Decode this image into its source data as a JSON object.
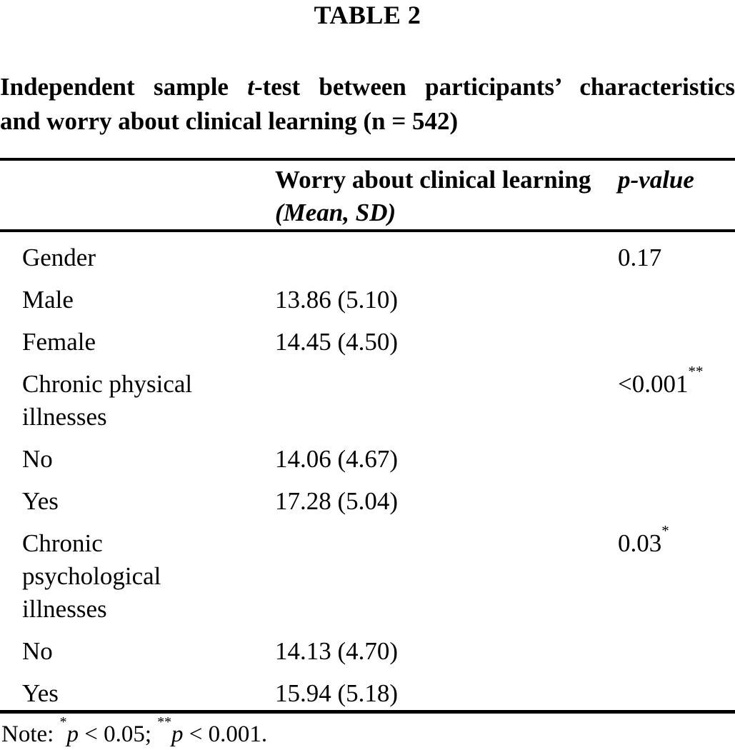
{
  "table_label": "TABLE 2",
  "caption": {
    "line1_part1": "Independent sample ",
    "line1_italic": "t",
    "line1_part2": "-test between participants’ characteristics",
    "line2": "and worry about clinical learning (n = 542)"
  },
  "header": {
    "col2_line1": "Worry about clinical learning",
    "col2_line2": "(Mean, SD)",
    "col3": "p-value"
  },
  "rows": [
    {
      "label": "Gender",
      "value": "",
      "p": "0.17",
      "p_sup": ""
    },
    {
      "label": "Male",
      "value": "13.86 (5.10)",
      "p": "",
      "p_sup": ""
    },
    {
      "label": "Female",
      "value": "14.45 (4.50)",
      "p": "",
      "p_sup": ""
    },
    {
      "label": "Chronic physical\nillnesses",
      "value": "",
      "p": "<0.001",
      "p_sup": "**"
    },
    {
      "label": "No",
      "value": "14.06 (4.67)",
      "p": "",
      "p_sup": ""
    },
    {
      "label": "Yes",
      "value": "17.28 (5.04)",
      "p": "",
      "p_sup": ""
    },
    {
      "label": "Chronic\npsychological\nillnesses",
      "value": "",
      "p": "0.03",
      "p_sup": "*"
    },
    {
      "label": "No",
      "value": "14.13 (4.70)",
      "p": "",
      "p_sup": ""
    },
    {
      "label": "Yes",
      "value": "15.94 (5.18)",
      "p": "",
      "p_sup": ""
    }
  ],
  "note": {
    "prefix": "Note: ",
    "sup1": "*",
    "p1": "p",
    "seg1": " < 0.05; ",
    "sup2": "**",
    "p2": "p",
    "seg2": " < 0.001."
  },
  "colors": {
    "text": "#000000",
    "background": "#ffffff",
    "rule": "#000000"
  }
}
